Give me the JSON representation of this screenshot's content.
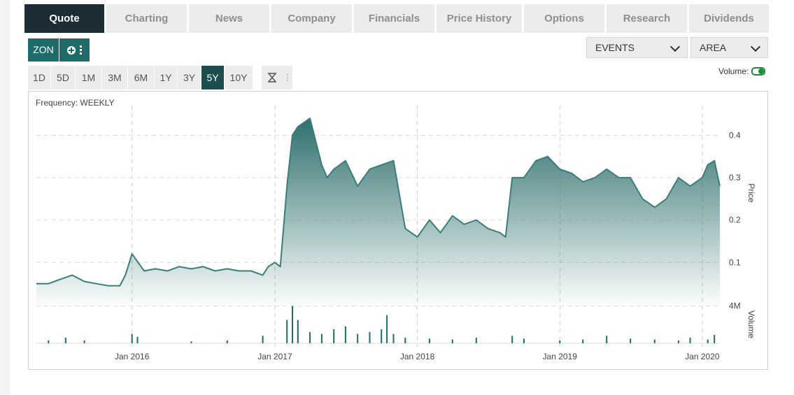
{
  "tabs": [
    {
      "label": "Quote",
      "active": true
    },
    {
      "label": "Charting",
      "active": false
    },
    {
      "label": "News",
      "active": false
    },
    {
      "label": "Company",
      "active": false
    },
    {
      "label": "Financials",
      "active": false
    },
    {
      "label": "Price History",
      "active": false
    },
    {
      "label": "Options",
      "active": false
    },
    {
      "label": "Research",
      "active": false
    },
    {
      "label": "Dividends",
      "active": false
    }
  ],
  "symbol": {
    "ticker": "ZON",
    "add_icon": "plus-circle-icon",
    "menu_icon": "kebab-menu-icon"
  },
  "selects": {
    "events": "EVENTS",
    "chart_type": "AREA"
  },
  "ranges": [
    {
      "label": "1D",
      "active": false
    },
    {
      "label": "5D",
      "active": false
    },
    {
      "label": "1M",
      "active": false
    },
    {
      "label": "3M",
      "active": false
    },
    {
      "label": "6M",
      "active": false
    },
    {
      "label": "1Y",
      "active": false
    },
    {
      "label": "3Y",
      "active": false
    },
    {
      "label": "5Y",
      "active": true
    },
    {
      "label": "10Y",
      "active": false
    }
  ],
  "tools": {
    "hourglass_icon": "hourglass-icon",
    "menu_icon": "kebab-menu-icon"
  },
  "volume_toggle": {
    "label": "Volume:",
    "on": true
  },
  "colors": {
    "accent": "#1f6b6a",
    "line": "#3a7e7b",
    "volume_bar": "#1f6b6a",
    "active_tab": "#1d2d36"
  },
  "chart_data": {
    "type": "area",
    "frequency_label": "Frequency: WEEKLY",
    "price_axis_label": "Price",
    "volume_axis_label": "Volume",
    "price_ticks": [
      "0.4",
      "0.3",
      "0.2",
      "0.1"
    ],
    "price_tick_values": [
      0.4,
      0.3,
      0.2,
      0.1
    ],
    "volume_tick_label": "4M",
    "volume_tick_value": 4000000,
    "ylim": [
      0.0,
      0.47
    ],
    "xlim": [
      "2015-05-01",
      "2020-02-15"
    ],
    "x_ticks": [
      {
        "label": "Jan 2016",
        "date": "2016-01-01"
      },
      {
        "label": "Jan 2017",
        "date": "2017-01-01"
      },
      {
        "label": "Jan 2018",
        "date": "2018-01-01"
      },
      {
        "label": "Jan 2019",
        "date": "2019-01-01"
      },
      {
        "label": "Jan 2020",
        "date": "2020-01-01"
      }
    ],
    "grid": true,
    "price": {
      "name": "Price",
      "dates": [
        "2015-05-01",
        "2015-06-01",
        "2015-07-01",
        "2015-08-01",
        "2015-09-01",
        "2015-10-01",
        "2015-11-01",
        "2015-12-01",
        "2015-12-15",
        "2016-01-01",
        "2016-02-01",
        "2016-03-01",
        "2016-04-01",
        "2016-05-01",
        "2016-06-01",
        "2016-07-01",
        "2016-08-01",
        "2016-09-01",
        "2016-10-01",
        "2016-11-01",
        "2016-12-01",
        "2016-12-15",
        "2017-01-01",
        "2017-01-15",
        "2017-02-01",
        "2017-02-15",
        "2017-03-01",
        "2017-04-01",
        "2017-05-01",
        "2017-05-15",
        "2017-06-01",
        "2017-07-01",
        "2017-08-01",
        "2017-09-01",
        "2017-10-01",
        "2017-11-01",
        "2017-12-01",
        "2018-01-01",
        "2018-02-01",
        "2018-03-01",
        "2018-04-01",
        "2018-05-01",
        "2018-06-01",
        "2018-07-01",
        "2018-08-01",
        "2018-08-15",
        "2018-09-01",
        "2018-10-01",
        "2018-11-01",
        "2018-12-01",
        "2019-01-01",
        "2019-02-01",
        "2019-03-01",
        "2019-04-01",
        "2019-05-01",
        "2019-06-01",
        "2019-07-01",
        "2019-08-01",
        "2019-09-01",
        "2019-10-01",
        "2019-11-01",
        "2019-12-01",
        "2020-01-01",
        "2020-01-15",
        "2020-02-01",
        "2020-02-15"
      ],
      "values": [
        0.05,
        0.05,
        0.06,
        0.07,
        0.055,
        0.05,
        0.045,
        0.045,
        0.07,
        0.12,
        0.08,
        0.085,
        0.08,
        0.09,
        0.085,
        0.09,
        0.08,
        0.085,
        0.08,
        0.08,
        0.07,
        0.09,
        0.1,
        0.09,
        0.28,
        0.4,
        0.42,
        0.44,
        0.33,
        0.3,
        0.32,
        0.34,
        0.28,
        0.32,
        0.33,
        0.34,
        0.18,
        0.16,
        0.2,
        0.17,
        0.21,
        0.19,
        0.2,
        0.18,
        0.17,
        0.16,
        0.3,
        0.3,
        0.34,
        0.35,
        0.32,
        0.31,
        0.29,
        0.3,
        0.32,
        0.3,
        0.3,
        0.25,
        0.23,
        0.25,
        0.3,
        0.28,
        0.3,
        0.33,
        0.34,
        0.28
      ]
    },
    "volume": {
      "name": "Volume",
      "dates": [
        "2015-06-01",
        "2015-07-15",
        "2015-09-01",
        "2016-01-01",
        "2016-01-15",
        "2016-06-01",
        "2016-09-01",
        "2016-12-01",
        "2017-02-01",
        "2017-02-15",
        "2017-03-01",
        "2017-04-01",
        "2017-05-01",
        "2017-06-01",
        "2017-07-01",
        "2017-08-01",
        "2017-09-01",
        "2017-10-01",
        "2017-10-15",
        "2017-11-01",
        "2017-12-01",
        "2018-02-01",
        "2018-04-01",
        "2018-06-01",
        "2018-09-01",
        "2018-10-01",
        "2019-01-01",
        "2019-03-01",
        "2019-05-01",
        "2019-07-01",
        "2019-09-01",
        "2019-11-01",
        "2019-12-01",
        "2020-01-15",
        "2020-02-01"
      ],
      "values": [
        300000,
        600000,
        300000,
        1000000,
        700000,
        200000,
        300000,
        800000,
        2500000,
        4000000,
        2500000,
        1200000,
        1000000,
        1500000,
        1800000,
        1000000,
        1200000,
        1500000,
        3000000,
        1000000,
        600000,
        500000,
        400000,
        600000,
        800000,
        500000,
        300000,
        400000,
        800000,
        500000,
        400000,
        300000,
        600000,
        400000,
        900000
      ]
    }
  }
}
